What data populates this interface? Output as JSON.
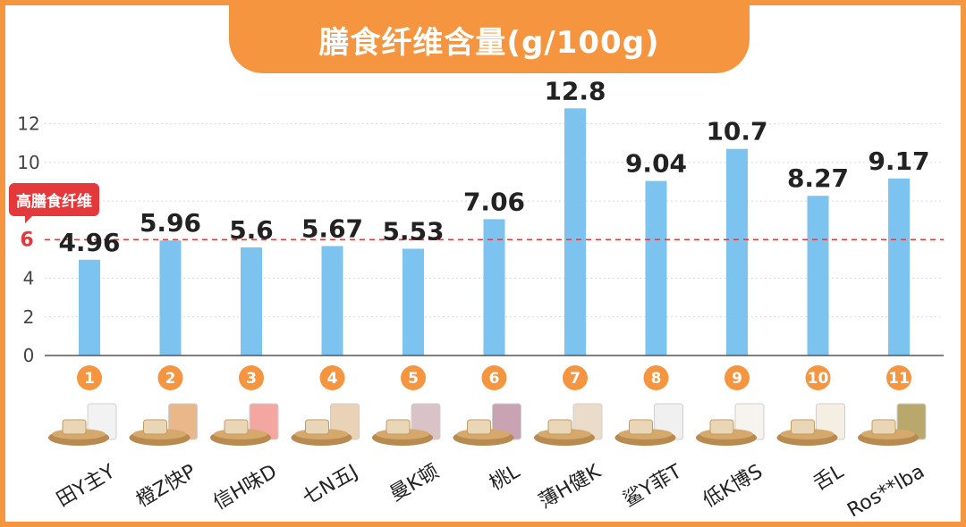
{
  "chart_data": {
    "type": "bar",
    "title": "膳食纤维含量(g/100g)",
    "categories": [
      "田Y主Y",
      "橙Z快P",
      "信H味D",
      "七N五J",
      "曼K顿",
      "桃L",
      "薄H健K",
      "鲨Y菲T",
      "低K博S",
      "舌L",
      "Ros**lba"
    ],
    "values": [
      4.96,
      5.96,
      5.6,
      5.67,
      5.53,
      7.06,
      12.8,
      9.04,
      10.7,
      8.27,
      9.17
    ],
    "value_labels": [
      "4.96",
      "5.96",
      "5.6",
      "5.67",
      "5.53",
      "7.06",
      "12.8",
      "9.04",
      "10.7",
      "8.27",
      "9.17"
    ],
    "index_labels": [
      "1",
      "2",
      "3",
      "4",
      "5",
      "6",
      "7",
      "8",
      "9",
      "10",
      "11"
    ],
    "ylim": [
      0,
      13
    ],
    "yticks": [
      0,
      2,
      4,
      6,
      8,
      10,
      12
    ],
    "grid": true,
    "bar_color": "#7cc3f0",
    "reference_line": {
      "value": 6,
      "label": "高膳食纤维",
      "color": "#e5383b"
    },
    "accent_color": "#f5953f"
  }
}
